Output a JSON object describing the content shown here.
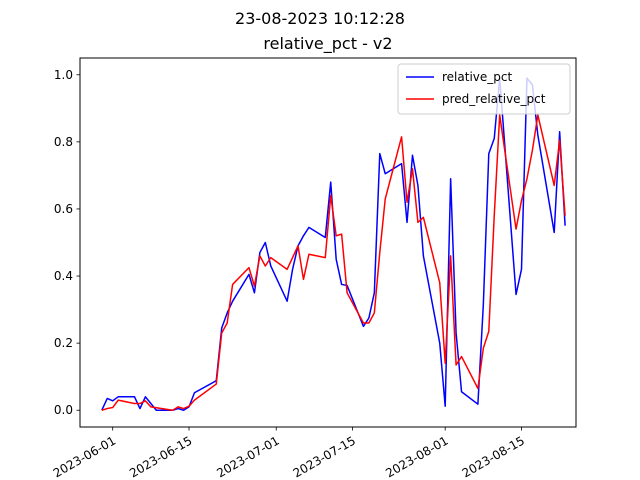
{
  "figure": {
    "suptitle": "23-08-2023 10:12:28",
    "title": "relative_pct - v2"
  },
  "chart_data": {
    "type": "line",
    "title": "relative_pct - v2",
    "xlabel": "",
    "ylabel": "",
    "x_axis_type": "date",
    "xlim": [
      "2023-05-26",
      "2023-08-25"
    ],
    "ylim": [
      -0.05,
      1.05
    ],
    "x_ticks": [
      "2023-06-01",
      "2023-06-15",
      "2023-07-01",
      "2023-07-15",
      "2023-08-01",
      "2023-08-15"
    ],
    "y_ticks": [
      0.0,
      0.2,
      0.4,
      0.6,
      0.8,
      1.0
    ],
    "x_tick_labels": [
      "2023-06-01",
      "2023-06-15",
      "2023-07-01",
      "2023-07-15",
      "2023-08-01",
      "2023-08-15"
    ],
    "y_tick_labels": [
      "0.0",
      "0.2",
      "0.4",
      "0.6",
      "0.8",
      "1.0"
    ],
    "x_tick_rotation": 30,
    "grid": false,
    "legend_position": "top-right",
    "series": [
      {
        "name": "relative_pct",
        "color": "#0000ff",
        "points": [
          [
            "2023-05-30",
            0.0
          ],
          [
            "2023-05-31",
            0.035
          ],
          [
            "2023-06-01",
            0.028
          ],
          [
            "2023-06-02",
            0.04
          ],
          [
            "2023-06-05",
            0.04
          ],
          [
            "2023-06-06",
            0.005
          ],
          [
            "2023-06-07",
            0.04
          ],
          [
            "2023-06-08",
            0.02
          ],
          [
            "2023-06-09",
            0.0
          ],
          [
            "2023-06-12",
            0.0
          ],
          [
            "2023-06-13",
            0.005
          ],
          [
            "2023-06-14",
            0.0
          ],
          [
            "2023-06-15",
            0.01
          ],
          [
            "2023-06-16",
            0.052
          ],
          [
            "2023-06-20",
            0.088
          ],
          [
            "2023-06-21",
            0.245
          ],
          [
            "2023-06-22",
            0.29
          ],
          [
            "2023-06-23",
            0.325
          ],
          [
            "2023-06-26",
            0.405
          ],
          [
            "2023-06-27",
            0.35
          ],
          [
            "2023-06-28",
            0.47
          ],
          [
            "2023-06-29",
            0.5
          ],
          [
            "2023-06-30",
            0.43
          ],
          [
            "2023-07-03",
            0.325
          ],
          [
            "2023-07-04",
            0.42
          ],
          [
            "2023-07-05",
            0.49
          ],
          [
            "2023-07-06",
            0.52
          ],
          [
            "2023-07-07",
            0.545
          ],
          [
            "2023-07-10",
            0.515
          ],
          [
            "2023-07-11",
            0.68
          ],
          [
            "2023-07-12",
            0.45
          ],
          [
            "2023-07-13",
            0.375
          ],
          [
            "2023-07-14",
            0.372
          ],
          [
            "2023-07-17",
            0.25
          ],
          [
            "2023-07-18",
            0.275
          ],
          [
            "2023-07-19",
            0.35
          ],
          [
            "2023-07-20",
            0.765
          ],
          [
            "2023-07-21",
            0.705
          ],
          [
            "2023-07-24",
            0.735
          ],
          [
            "2023-07-25",
            0.56
          ],
          [
            "2023-07-26",
            0.76
          ],
          [
            "2023-07-27",
            0.67
          ],
          [
            "2023-07-28",
            0.46
          ],
          [
            "2023-07-31",
            0.2
          ],
          [
            "2023-08-01",
            0.012
          ],
          [
            "2023-08-02",
            0.69
          ],
          [
            "2023-08-03",
            0.23
          ],
          [
            "2023-08-04",
            0.055
          ],
          [
            "2023-08-07",
            0.018
          ],
          [
            "2023-08-08",
            0.315
          ],
          [
            "2023-08-09",
            0.765
          ],
          [
            "2023-08-10",
            0.81
          ],
          [
            "2023-08-11",
            0.99
          ],
          [
            "2023-08-14",
            0.345
          ],
          [
            "2023-08-15",
            0.42
          ],
          [
            "2023-08-16",
            0.99
          ],
          [
            "2023-08-17",
            0.97
          ],
          [
            "2023-08-18",
            0.82
          ],
          [
            "2023-08-21",
            0.53
          ],
          [
            "2023-08-22",
            0.83
          ],
          [
            "2023-08-23",
            0.55
          ]
        ]
      },
      {
        "name": "pred_relative_pct",
        "color": "#ff0000",
        "points": [
          [
            "2023-05-30",
            0.0
          ],
          [
            "2023-05-31",
            0.005
          ],
          [
            "2023-06-01",
            0.008
          ],
          [
            "2023-06-02",
            0.03
          ],
          [
            "2023-06-05",
            0.02
          ],
          [
            "2023-06-06",
            0.02
          ],
          [
            "2023-06-07",
            0.028
          ],
          [
            "2023-06-08",
            0.01
          ],
          [
            "2023-06-12",
            0.0
          ],
          [
            "2023-06-13",
            0.01
          ],
          [
            "2023-06-14",
            0.005
          ],
          [
            "2023-06-15",
            0.012
          ],
          [
            "2023-06-16",
            0.03
          ],
          [
            "2023-06-20",
            0.078
          ],
          [
            "2023-06-21",
            0.23
          ],
          [
            "2023-06-22",
            0.26
          ],
          [
            "2023-06-23",
            0.375
          ],
          [
            "2023-06-26",
            0.425
          ],
          [
            "2023-06-27",
            0.37
          ],
          [
            "2023-06-28",
            0.46
          ],
          [
            "2023-06-29",
            0.43
          ],
          [
            "2023-06-30",
            0.455
          ],
          [
            "2023-07-03",
            0.42
          ],
          [
            "2023-07-05",
            0.49
          ],
          [
            "2023-07-06",
            0.39
          ],
          [
            "2023-07-07",
            0.465
          ],
          [
            "2023-07-10",
            0.455
          ],
          [
            "2023-07-11",
            0.64
          ],
          [
            "2023-07-12",
            0.52
          ],
          [
            "2023-07-13",
            0.525
          ],
          [
            "2023-07-14",
            0.35
          ],
          [
            "2023-07-17",
            0.26
          ],
          [
            "2023-07-18",
            0.26
          ],
          [
            "2023-07-19",
            0.29
          ],
          [
            "2023-07-20",
            0.47
          ],
          [
            "2023-07-21",
            0.63
          ],
          [
            "2023-07-24",
            0.815
          ],
          [
            "2023-07-25",
            0.62
          ],
          [
            "2023-07-26",
            0.72
          ],
          [
            "2023-07-27",
            0.56
          ],
          [
            "2023-07-28",
            0.575
          ],
          [
            "2023-07-31",
            0.38
          ],
          [
            "2023-08-01",
            0.14
          ],
          [
            "2023-08-02",
            0.46
          ],
          [
            "2023-08-03",
            0.135
          ],
          [
            "2023-08-04",
            0.16
          ],
          [
            "2023-08-07",
            0.065
          ],
          [
            "2023-08-08",
            0.185
          ],
          [
            "2023-08-09",
            0.235
          ],
          [
            "2023-08-10",
            0.58
          ],
          [
            "2023-08-11",
            0.88
          ],
          [
            "2023-08-14",
            0.54
          ],
          [
            "2023-08-15",
            0.625
          ],
          [
            "2023-08-16",
            0.69
          ],
          [
            "2023-08-17",
            0.775
          ],
          [
            "2023-08-18",
            0.88
          ],
          [
            "2023-08-21",
            0.67
          ],
          [
            "2023-08-22",
            0.805
          ],
          [
            "2023-08-23",
            0.58
          ]
        ]
      }
    ]
  }
}
